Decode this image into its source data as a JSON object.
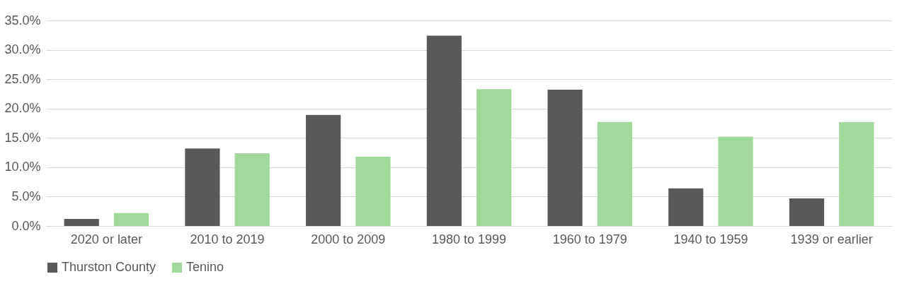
{
  "chart_data": {
    "type": "bar",
    "categories": [
      "2020 or later",
      "2010 to 2019",
      "2000 to 2009",
      "1980 to 1999",
      "1960 to 1979",
      "1940 to 1959",
      "1939 or earlier"
    ],
    "series": [
      {
        "name": "Thurston County",
        "color": "#595959",
        "values": [
          1.2,
          13.2,
          18.9,
          32.4,
          23.2,
          6.4,
          4.7
        ]
      },
      {
        "name": "Tenino",
        "color": "#a1d99b",
        "values": [
          2.2,
          12.4,
          11.8,
          23.3,
          17.7,
          15.2,
          17.7
        ]
      }
    ],
    "ylim": [
      0,
      35
    ],
    "yticks": [
      {
        "value": 0,
        "label": "0.0%"
      },
      {
        "value": 5,
        "label": "5.0%"
      },
      {
        "value": 10,
        "label": "10.0%"
      },
      {
        "value": 15,
        "label": "15.0%"
      },
      {
        "value": 20,
        "label": "20.0%"
      },
      {
        "value": 25,
        "label": "25.0%"
      },
      {
        "value": 30,
        "label": "30.0%"
      },
      {
        "value": 35,
        "label": "35.0%"
      }
    ],
    "grid": "y",
    "legend": "bottom"
  }
}
